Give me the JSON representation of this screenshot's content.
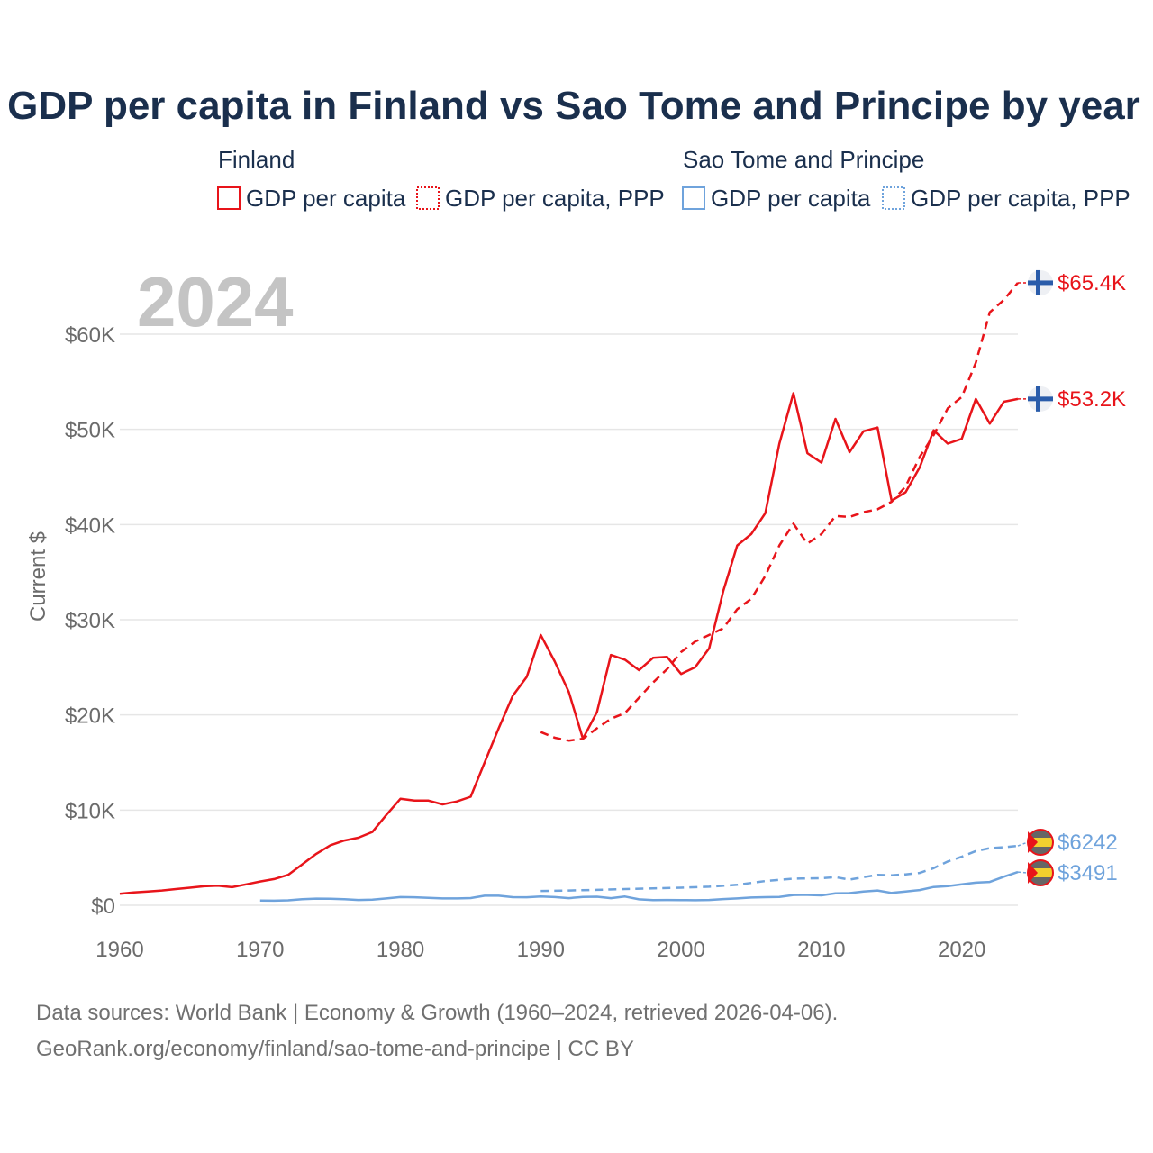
{
  "colors": {
    "finland": "#e8141a",
    "sao_tome": "#6fa3dc",
    "title": "#1a2f4d",
    "grid": "#e6e6e6",
    "tick": "#6b6b6b"
  },
  "chart_data": {
    "type": "line",
    "title": "GDP per capita in Finland vs Sao Tome and Principe by year",
    "year_label": "2024",
    "ylabel": "Current $",
    "xlabel": "",
    "xlim": [
      1960,
      2024
    ],
    "ylim": [
      0,
      65400
    ],
    "x_ticks": [
      1960,
      1970,
      1980,
      1990,
      2000,
      2010,
      2020
    ],
    "y_ticks": [
      {
        "value": 0,
        "label": "$0"
      },
      {
        "value": 10000,
        "label": "$10K"
      },
      {
        "value": 20000,
        "label": "$20K"
      },
      {
        "value": 30000,
        "label": "$30K"
      },
      {
        "value": 40000,
        "label": "$40K"
      },
      {
        "value": 50000,
        "label": "$50K"
      },
      {
        "value": 60000,
        "label": "$60K"
      }
    ],
    "legend": {
      "groups": [
        {
          "name": "Finland",
          "color": "#e8141a",
          "items": [
            {
              "label": "GDP per capita",
              "style": "solid"
            },
            {
              "label": "GDP per capita, PPP",
              "style": "dotted"
            }
          ]
        },
        {
          "name": "Sao Tome and Principe",
          "color": "#6fa3dc",
          "items": [
            {
              "label": "GDP per capita",
              "style": "solid"
            },
            {
              "label": "GDP per capita, PPP",
              "style": "dotted"
            }
          ]
        }
      ]
    },
    "series": [
      {
        "name": "Finland GDP per capita",
        "country": "finland",
        "color": "#e8141a",
        "dash": "solid",
        "end_label": "$53.2K",
        "points": [
          [
            1960,
            1200
          ],
          [
            1961,
            1350
          ],
          [
            1962,
            1450
          ],
          [
            1963,
            1550
          ],
          [
            1964,
            1700
          ],
          [
            1965,
            1850
          ],
          [
            1966,
            2000
          ],
          [
            1967,
            2050
          ],
          [
            1968,
            1900
          ],
          [
            1969,
            2200
          ],
          [
            1970,
            2500
          ],
          [
            1971,
            2750
          ],
          [
            1972,
            3200
          ],
          [
            1973,
            4300
          ],
          [
            1974,
            5400
          ],
          [
            1975,
            6300
          ],
          [
            1976,
            6800
          ],
          [
            1977,
            7100
          ],
          [
            1978,
            7700
          ],
          [
            1979,
            9500
          ],
          [
            1980,
            11200
          ],
          [
            1981,
            11000
          ],
          [
            1982,
            11000
          ],
          [
            1983,
            10600
          ],
          [
            1984,
            10900
          ],
          [
            1985,
            11400
          ],
          [
            1986,
            15000
          ],
          [
            1987,
            18600
          ],
          [
            1988,
            22000
          ],
          [
            1989,
            24000
          ],
          [
            1990,
            28400
          ],
          [
            1991,
            25600
          ],
          [
            1992,
            22400
          ],
          [
            1993,
            17500
          ],
          [
            1994,
            20300
          ],
          [
            1995,
            26300
          ],
          [
            1996,
            25800
          ],
          [
            1997,
            24700
          ],
          [
            1998,
            26000
          ],
          [
            1999,
            26100
          ],
          [
            2000,
            24300
          ],
          [
            2001,
            25000
          ],
          [
            2002,
            27000
          ],
          [
            2003,
            33000
          ],
          [
            2004,
            37800
          ],
          [
            2005,
            39000
          ],
          [
            2006,
            41200
          ],
          [
            2007,
            48500
          ],
          [
            2008,
            53800
          ],
          [
            2009,
            47500
          ],
          [
            2010,
            46500
          ],
          [
            2011,
            51100
          ],
          [
            2012,
            47600
          ],
          [
            2013,
            49800
          ],
          [
            2014,
            50200
          ],
          [
            2015,
            42500
          ],
          [
            2016,
            43400
          ],
          [
            2017,
            46000
          ],
          [
            2018,
            49900
          ],
          [
            2019,
            48500
          ],
          [
            2020,
            49000
          ],
          [
            2021,
            53200
          ],
          [
            2022,
            50600
          ],
          [
            2023,
            52900
          ],
          [
            2024,
            53200
          ]
        ]
      },
      {
        "name": "Finland GDP per capita, PPP",
        "country": "finland",
        "color": "#e8141a",
        "dash": "dashed",
        "end_label": "$65.4K",
        "points": [
          [
            1990,
            18200
          ],
          [
            1991,
            17600
          ],
          [
            1992,
            17300
          ],
          [
            1993,
            17500
          ],
          [
            1994,
            18600
          ],
          [
            1995,
            19600
          ],
          [
            1996,
            20200
          ],
          [
            1997,
            21800
          ],
          [
            1998,
            23400
          ],
          [
            1999,
            24800
          ],
          [
            2000,
            26600
          ],
          [
            2001,
            27700
          ],
          [
            2002,
            28400
          ],
          [
            2003,
            29100
          ],
          [
            2004,
            31100
          ],
          [
            2005,
            32200
          ],
          [
            2006,
            34600
          ],
          [
            2007,
            37800
          ],
          [
            2008,
            40100
          ],
          [
            2009,
            38000
          ],
          [
            2010,
            39000
          ],
          [
            2011,
            40900
          ],
          [
            2012,
            40800
          ],
          [
            2013,
            41300
          ],
          [
            2014,
            41600
          ],
          [
            2015,
            42400
          ],
          [
            2016,
            44000
          ],
          [
            2017,
            47100
          ],
          [
            2018,
            49400
          ],
          [
            2019,
            52200
          ],
          [
            2020,
            53400
          ],
          [
            2021,
            57000
          ],
          [
            2022,
            62300
          ],
          [
            2023,
            63600
          ],
          [
            2024,
            65400
          ]
        ]
      },
      {
        "name": "Sao Tome and Principe GDP per capita",
        "country": "sao_tome",
        "color": "#6fa3dc",
        "dash": "solid",
        "end_label": "$3491",
        "points": [
          [
            1970,
            500
          ],
          [
            1971,
            480
          ],
          [
            1972,
            520
          ],
          [
            1973,
            640
          ],
          [
            1974,
            700
          ],
          [
            1975,
            690
          ],
          [
            1976,
            630
          ],
          [
            1977,
            560
          ],
          [
            1978,
            600
          ],
          [
            1979,
            720
          ],
          [
            1980,
            860
          ],
          [
            1981,
            840
          ],
          [
            1982,
            780
          ],
          [
            1983,
            720
          ],
          [
            1984,
            720
          ],
          [
            1985,
            760
          ],
          [
            1986,
            1000
          ],
          [
            1987,
            1000
          ],
          [
            1988,
            850
          ],
          [
            1989,
            840
          ],
          [
            1990,
            920
          ],
          [
            1991,
            860
          ],
          [
            1992,
            750
          ],
          [
            1993,
            880
          ],
          [
            1994,
            900
          ],
          [
            1995,
            750
          ],
          [
            1996,
            920
          ],
          [
            1997,
            620
          ],
          [
            1998,
            550
          ],
          [
            1999,
            560
          ],
          [
            2000,
            550
          ],
          [
            2001,
            530
          ],
          [
            2002,
            560
          ],
          [
            2003,
            650
          ],
          [
            2004,
            720
          ],
          [
            2005,
            810
          ],
          [
            2006,
            850
          ],
          [
            2007,
            880
          ],
          [
            2008,
            1080
          ],
          [
            2009,
            1090
          ],
          [
            2010,
            1040
          ],
          [
            2011,
            1250
          ],
          [
            2012,
            1280
          ],
          [
            2013,
            1450
          ],
          [
            2014,
            1550
          ],
          [
            2015,
            1300
          ],
          [
            2016,
            1450
          ],
          [
            2017,
            1600
          ],
          [
            2018,
            1920
          ],
          [
            2019,
            2010
          ],
          [
            2020,
            2200
          ],
          [
            2021,
            2380
          ],
          [
            2022,
            2450
          ],
          [
            2023,
            3000
          ],
          [
            2024,
            3491
          ]
        ]
      },
      {
        "name": "Sao Tome and Principe GDP per capita, PPP",
        "country": "sao_tome",
        "color": "#6fa3dc",
        "dash": "dashed",
        "end_label": "$6242",
        "points": [
          [
            1990,
            1500
          ],
          [
            1992,
            1550
          ],
          [
            1994,
            1620
          ],
          [
            1996,
            1700
          ],
          [
            1998,
            1780
          ],
          [
            2000,
            1850
          ],
          [
            2002,
            1950
          ],
          [
            2004,
            2150
          ],
          [
            2006,
            2550
          ],
          [
            2008,
            2800
          ],
          [
            2010,
            2850
          ],
          [
            2011,
            2950
          ],
          [
            2012,
            2700
          ],
          [
            2013,
            2950
          ],
          [
            2014,
            3200
          ],
          [
            2015,
            3150
          ],
          [
            2016,
            3250
          ],
          [
            2017,
            3400
          ],
          [
            2018,
            3900
          ],
          [
            2019,
            4600
          ],
          [
            2020,
            5100
          ],
          [
            2021,
            5700
          ],
          [
            2022,
            6000
          ],
          [
            2023,
            6100
          ],
          [
            2024,
            6242
          ]
        ]
      }
    ]
  },
  "source": {
    "line1": "Data sources: World Bank | Economy & Growth (1960–2024, retrieved 2026-04-06).",
    "line2": "GeoRank.org/economy/finland/sao-tome-and-principe | CC BY"
  }
}
